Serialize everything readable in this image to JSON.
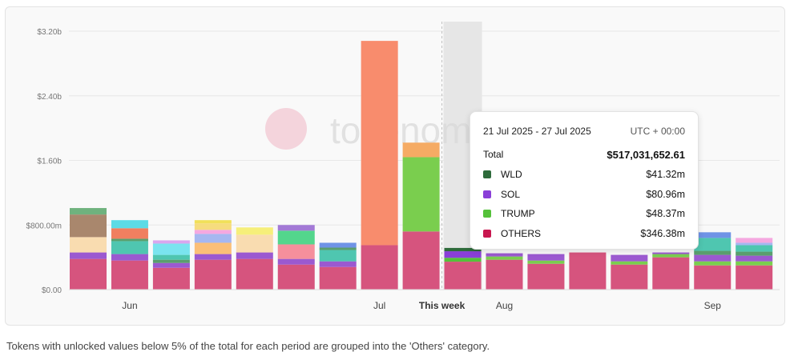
{
  "chart_data": {
    "type": "bar",
    "stacked": true,
    "watermark": "tokenomist",
    "ylim": [
      0,
      3.2
    ],
    "yticks": [
      {
        "value": 0,
        "label": "$0.00"
      },
      {
        "value": 0.8,
        "label": "$800.00m"
      },
      {
        "value": 1.6,
        "label": "$1.60b"
      },
      {
        "value": 2.4,
        "label": "$2.40b"
      },
      {
        "value": 3.2,
        "label": "$3.20b"
      }
    ],
    "xticks": [
      {
        "bar": 1,
        "label": "Jun"
      },
      {
        "bar": 7,
        "label": "Jul"
      },
      {
        "bar": 8.5,
        "label": "This week"
      },
      {
        "bar": 10,
        "label": "Aug"
      },
      {
        "bar": 15,
        "label": "Sep"
      }
    ],
    "current_week_bar": 8.5,
    "highlighted_bar": 9,
    "bars": [
      {
        "segments": [
          {
            "color": "#d6547e",
            "value": 0.38
          },
          {
            "color": "#9b59d0",
            "value": 0.08
          },
          {
            "color": "#f9dcb0",
            "value": 0.19
          },
          {
            "color": "#a9876d",
            "value": 0.28
          },
          {
            "color": "#6fb27e",
            "value": 0.08
          }
        ]
      },
      {
        "segments": [
          {
            "color": "#d6547e",
            "value": 0.36
          },
          {
            "color": "#9b59d0",
            "value": 0.08
          },
          {
            "color": "#4fc6b0",
            "value": 0.16
          },
          {
            "color": "#5aa06e",
            "value": 0.03
          },
          {
            "color": "#f07f60",
            "value": 0.13
          },
          {
            "color": "#5cdbe6",
            "value": 0.1
          }
        ]
      },
      {
        "segments": [
          {
            "color": "#d6547e",
            "value": 0.27
          },
          {
            "color": "#9b59d0",
            "value": 0.06
          },
          {
            "color": "#5a9e6e",
            "value": 0.04
          },
          {
            "color": "#4fc6b0",
            "value": 0.06
          },
          {
            "color": "#7ae4ef",
            "value": 0.14
          },
          {
            "color": "#d9a6ee",
            "value": 0.04
          }
        ]
      },
      {
        "segments": [
          {
            "color": "#d6547e",
            "value": 0.37
          },
          {
            "color": "#9b59d0",
            "value": 0.07
          },
          {
            "color": "#fbbf77",
            "value": 0.14
          },
          {
            "color": "#a6b7f0",
            "value": 0.11
          },
          {
            "color": "#f5a8e0",
            "value": 0.05
          },
          {
            "color": "#f6dc7e",
            "value": 0.08
          },
          {
            "color": "#f1e05a",
            "value": 0.04
          }
        ]
      },
      {
        "segments": [
          {
            "color": "#d6547e",
            "value": 0.38
          },
          {
            "color": "#9b59d0",
            "value": 0.08
          },
          {
            "color": "#f9dcb0",
            "value": 0.22
          },
          {
            "color": "#f6ef7a",
            "value": 0.09
          }
        ]
      },
      {
        "segments": [
          {
            "color": "#d6547e",
            "value": 0.31
          },
          {
            "color": "#9b59d0",
            "value": 0.07
          },
          {
            "color": "#f58f9c",
            "value": 0.18
          },
          {
            "color": "#53d68c",
            "value": 0.17
          },
          {
            "color": "#a37ad6",
            "value": 0.07
          }
        ]
      },
      {
        "segments": [
          {
            "color": "#d6547e",
            "value": 0.28
          },
          {
            "color": "#9b59d0",
            "value": 0.07
          },
          {
            "color": "#4fc6b0",
            "value": 0.14
          },
          {
            "color": "#5a9e6e",
            "value": 0.03
          },
          {
            "color": "#6f93e6",
            "value": 0.06
          }
        ]
      },
      {
        "segments": [
          {
            "color": "#d6547e",
            "value": 0.55
          },
          {
            "color": "#f88c6d",
            "value": 2.53
          }
        ]
      },
      {
        "segments": [
          {
            "color": "#d6547e",
            "value": 0.72
          },
          {
            "color": "#7ace4e",
            "value": 0.92
          },
          {
            "color": "#f5ab64",
            "value": 0.18
          }
        ]
      },
      {
        "segments": [
          {
            "color": "#d6547e",
            "value": 0.346
          },
          {
            "color": "#55c13a",
            "value": 0.048
          },
          {
            "color": "#8a3fd8",
            "value": 0.081
          },
          {
            "color": "#2e6b3b",
            "value": 0.041
          }
        ]
      },
      {
        "segments": [
          {
            "color": "#d6547e",
            "value": 0.37
          },
          {
            "color": "#7ace4e",
            "value": 0.04
          },
          {
            "color": "#9b59d0",
            "value": 0.04
          }
        ]
      },
      {
        "segments": [
          {
            "color": "#d6547e",
            "value": 0.32
          },
          {
            "color": "#7ace4e",
            "value": 0.04
          },
          {
            "color": "#9b59d0",
            "value": 0.08
          }
        ]
      },
      {
        "segments": [
          {
            "color": "#d6547e",
            "value": 0.46
          }
        ]
      },
      {
        "segments": [
          {
            "color": "#d6547e",
            "value": 0.31
          },
          {
            "color": "#7ace4e",
            "value": 0.04
          },
          {
            "color": "#9b59d0",
            "value": 0.08
          }
        ]
      },
      {
        "segments": [
          {
            "color": "#d6547e",
            "value": 0.4
          },
          {
            "color": "#7ace4e",
            "value": 0.04
          },
          {
            "color": "#9b59d0",
            "value": 0.02
          }
        ]
      },
      {
        "segments": [
          {
            "color": "#d6547e",
            "value": 0.3
          },
          {
            "color": "#7ace4e",
            "value": 0.05
          },
          {
            "color": "#9b59d0",
            "value": 0.08
          },
          {
            "color": "#5a9e6e",
            "value": 0.05
          },
          {
            "color": "#4fc6b0",
            "value": 0.16
          },
          {
            "color": "#6f93e6",
            "value": 0.07
          }
        ]
      },
      {
        "segments": [
          {
            "color": "#d6547e",
            "value": 0.3
          },
          {
            "color": "#7ace4e",
            "value": 0.05
          },
          {
            "color": "#9b59d0",
            "value": 0.07
          },
          {
            "color": "#5a9e6e",
            "value": 0.05
          },
          {
            "color": "#4fc6b0",
            "value": 0.08
          },
          {
            "color": "#a6b7f0",
            "value": 0.03
          },
          {
            "color": "#f5a8e0",
            "value": 0.06
          }
        ]
      }
    ]
  },
  "tooltip": {
    "range": "21 Jul 2025 - 27 Jul 2025",
    "timezone": "UTC + 00:00",
    "total_label": "Total",
    "total_value": "$517,031,652.61",
    "rows": [
      {
        "token": "WLD",
        "value": "$41.32m",
        "color": "#2e6b3b"
      },
      {
        "token": "SOL",
        "value": "$80.96m",
        "color": "#8a3fd8"
      },
      {
        "token": "TRUMP",
        "value": "$48.37m",
        "color": "#55c13a"
      },
      {
        "token": "OTHERS",
        "value": "$346.38m",
        "color": "#c8174f"
      }
    ]
  },
  "footnote": "Tokens with unlocked values below 5% of the total for each period are grouped into the 'Others' category."
}
